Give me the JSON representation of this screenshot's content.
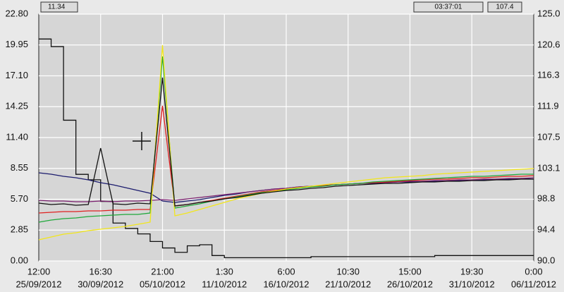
{
  "chart_data": {
    "type": "line",
    "readouts": {
      "left": "11.34",
      "time": "03:37:01",
      "right": "107.4"
    },
    "x_ticks": [
      {
        "time": "12:00",
        "date": "25/09/2012"
      },
      {
        "time": "16:30",
        "date": "30/09/2012"
      },
      {
        "time": "21:00",
        "date": "05/10/2012"
      },
      {
        "time": "1:30",
        "date": "11/10/2012"
      },
      {
        "time": "6:00",
        "date": "16/10/2012"
      },
      {
        "time": "10:30",
        "date": "21/10/2012"
      },
      {
        "time": "15:00",
        "date": "26/10/2012"
      },
      {
        "time": "19:30",
        "date": "31/10/2012"
      },
      {
        "time": "0:00",
        "date": "06/11/2012"
      }
    ],
    "ylim": [
      0,
      22.8
    ],
    "yticks": [
      {
        "value": 0,
        "label": "0.00"
      },
      2.85,
      {
        "value": 5.7,
        "label": "5.70"
      },
      8.55,
      {
        "value": 11.4,
        "label": "11.40"
      },
      14.25,
      {
        "value": 17.1,
        "label": "17.10"
      },
      19.95,
      {
        "value": 22.8,
        "label": "22.80"
      }
    ],
    "y2lim": [
      90,
      125
    ],
    "y2ticks": [
      {
        "value": 90,
        "label": "90.0"
      },
      94.4,
      98.8,
      103.1,
      107.5,
      111.9,
      116.3,
      120.6,
      {
        "value": 125,
        "label": "125.0"
      }
    ],
    "grid": true,
    "series": [
      {
        "color": "#111111",
        "axis": "y",
        "step": true,
        "values": [
          20.5,
          19.8,
          13.0,
          8.0,
          7.5,
          5.5,
          3.5,
          3.0,
          2.5,
          1.8,
          1.2,
          0.8,
          1.4,
          1.5,
          0.5,
          0.3,
          0.3,
          0.3,
          0.3,
          0.3,
          0.3,
          0.3,
          0.4,
          0.4,
          0.4,
          0.4,
          0.4,
          0.4,
          0.4,
          0.4,
          0.4,
          0.4,
          0.5,
          0.5,
          0.5,
          0.5,
          0.5,
          0.5,
          0.5,
          0.5,
          0.5
        ]
      },
      {
        "color": "#1c1c6e",
        "axis": "y2",
        "values": [
          102.5,
          102.3,
          102.0,
          101.8,
          101.5,
          101.1,
          100.8,
          100.4,
          100.0,
          99.6,
          98.5,
          98.3,
          98.5,
          98.7,
          99.0,
          99.3,
          99.5,
          99.8,
          100.0,
          100.2,
          100.3,
          100.5,
          100.6,
          100.7,
          100.8,
          100.9,
          101.0,
          101.0,
          101.1,
          101.2,
          101.2,
          101.3,
          101.3,
          101.4,
          101.4,
          101.5,
          101.5,
          101.6,
          101.6,
          101.7,
          101.6
        ]
      },
      {
        "color": "#7a1f6e",
        "axis": "y2",
        "values": [
          98.6,
          98.5,
          98.5,
          98.4,
          98.4,
          98.5,
          98.4,
          98.5,
          98.5,
          98.6,
          98.7,
          98.6,
          98.8,
          99.0,
          99.2,
          99.4,
          99.6,
          99.8,
          100.0,
          100.2,
          100.3,
          100.5,
          100.6,
          100.7,
          100.8,
          100.9,
          101.0,
          101.1,
          101.1,
          101.2,
          101.3,
          101.3,
          101.4,
          101.4,
          101.5,
          101.5,
          101.6,
          101.6,
          101.7,
          101.7,
          101.8
        ]
      },
      {
        "color": "#e02020",
        "axis": "y2",
        "values": [
          96.8,
          96.9,
          97.0,
          97.0,
          97.1,
          97.1,
          97.2,
          97.2,
          97.3,
          97.3,
          112.0,
          97.8,
          98.0,
          98.3,
          98.6,
          98.9,
          99.2,
          99.5,
          99.8,
          100.0,
          100.2,
          100.4,
          100.5,
          100.7,
          100.8,
          100.9,
          101.0,
          101.1,
          101.2,
          101.3,
          101.4,
          101.5,
          101.6,
          101.6,
          101.7,
          101.8,
          101.8,
          101.9,
          102.0,
          102.0,
          102.1
        ]
      },
      {
        "color": "#1fa83a",
        "axis": "y2",
        "values": [
          95.5,
          95.8,
          96.0,
          96.1,
          96.3,
          96.4,
          96.5,
          96.6,
          96.6,
          96.8,
          119.0,
          97.5,
          97.8,
          98.1,
          98.5,
          98.8,
          99.1,
          99.4,
          99.7,
          99.9,
          100.1,
          100.3,
          100.5,
          100.6,
          100.8,
          100.9,
          101.0,
          101.2,
          101.3,
          101.4,
          101.5,
          101.6,
          101.7,
          101.8,
          101.9,
          102.0,
          102.0,
          102.1,
          102.2,
          102.3,
          102.3
        ]
      },
      {
        "color": "#f2e61a",
        "axis": "y2",
        "values": [
          93.0,
          93.4,
          93.8,
          94.0,
          94.3,
          94.5,
          94.7,
          94.9,
          95.2,
          95.5,
          120.6,
          96.4,
          96.8,
          97.3,
          97.8,
          98.3,
          98.8,
          99.2,
          99.6,
          99.9,
          100.2,
          100.4,
          100.6,
          100.8,
          101.0,
          101.2,
          101.4,
          101.6,
          101.8,
          101.9,
          102.0,
          102.1,
          102.3,
          102.4,
          102.5,
          102.6,
          102.7,
          102.8,
          102.9,
          103.0,
          103.1
        ]
      },
      {
        "color": "#111111",
        "axis": "y2",
        "values": [
          98.2,
          98.0,
          98.1,
          97.9,
          98.0,
          106.0,
          98.1,
          98.0,
          98.2,
          98.1,
          116.0,
          97.8,
          98.0,
          98.3,
          98.5,
          98.8,
          99.0,
          99.3,
          99.6,
          99.8,
          100.0,
          100.1,
          100.3,
          100.4,
          100.6,
          100.7,
          100.8,
          100.9,
          101.0,
          101.0,
          101.1,
          101.2,
          101.2,
          101.3,
          101.3,
          101.4,
          101.4,
          101.5,
          101.5,
          101.6,
          101.6
        ]
      }
    ]
  }
}
